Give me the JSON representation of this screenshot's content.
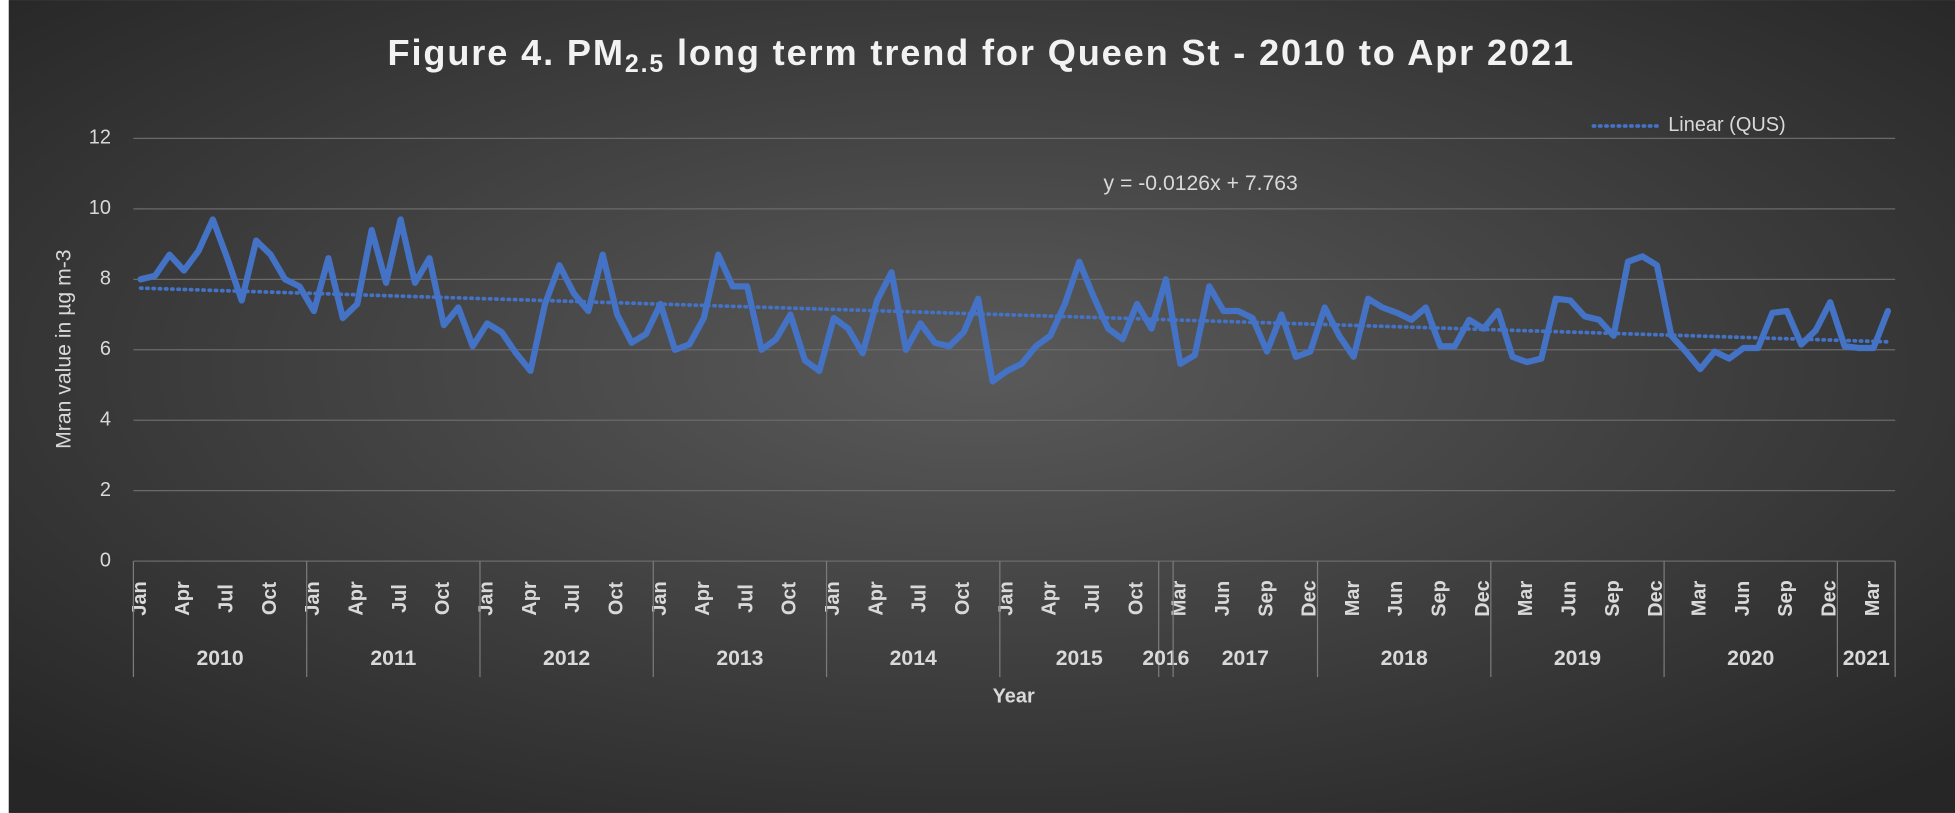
{
  "chart_data": {
    "type": "line",
    "title": "Figure 4. PM",
    "title_subscript": "2.5",
    "title_rest": " long term trend for Queen St - 2010 to Apr 2021",
    "y_label": "Mran value in µg m-3",
    "x_label": "Year",
    "categories": [
      "Jan",
      null,
      null,
      "Apr",
      null,
      null,
      "Jul",
      null,
      null,
      "Oct",
      null,
      null,
      "Jan",
      null,
      null,
      "Apr",
      null,
      null,
      "Jul",
      null,
      null,
      "Oct",
      null,
      null,
      "Jan",
      null,
      null,
      "Apr",
      null,
      null,
      "Jul",
      null,
      null,
      "Oct",
      null,
      null,
      "Jan",
      null,
      null,
      "Apr",
      null,
      null,
      "Jul",
      null,
      null,
      "Oct",
      null,
      null,
      "Jan",
      null,
      null,
      "Apr",
      null,
      null,
      "Jul",
      null,
      null,
      "Oct",
      null,
      null,
      "Jan",
      null,
      null,
      "Apr",
      null,
      null,
      "Jul",
      null,
      null,
      "Oct",
      null,
      null,
      "Mar",
      null,
      null,
      "Jun",
      null,
      null,
      "Sep",
      null,
      null,
      "Dec",
      null,
      null,
      "Mar",
      null,
      null,
      "Jun",
      null,
      null,
      "Sep",
      null,
      null,
      "Dec",
      null,
      null,
      "Mar",
      null,
      null,
      "Jun",
      null,
      null,
      "Sep",
      null,
      null,
      "Dec",
      null,
      null,
      "Mar",
      null,
      null,
      "Jun",
      null,
      null,
      "Sep",
      null,
      null,
      "Dec",
      null,
      null,
      "Mar",
      null
    ],
    "groups": [
      {
        "label": "2010",
        "count": 12
      },
      {
        "label": "2011",
        "count": 12
      },
      {
        "label": "2012",
        "count": 12
      },
      {
        "label": "2013",
        "count": 12
      },
      {
        "label": "2014",
        "count": 12
      },
      {
        "label": "2015",
        "count": 11
      },
      {
        "label": "2016",
        "count": 1
      },
      {
        "label": "2017",
        "count": 10
      },
      {
        "label": "2018",
        "count": 12
      },
      {
        "label": "2019",
        "count": 12
      },
      {
        "label": "2020",
        "count": 12
      },
      {
        "label": "2021",
        "count": 4
      }
    ],
    "series": [
      {
        "name": "QUS",
        "color": "#4472c4",
        "values": [
          8.0,
          8.1,
          8.7,
          8.25,
          8.8,
          9.7,
          8.6,
          7.4,
          9.1,
          8.7,
          8.0,
          7.8,
          7.1,
          8.6,
          6.9,
          7.3,
          9.4,
          7.9,
          9.7,
          7.9,
          8.6,
          6.7,
          7.2,
          6.1,
          6.75,
          6.5,
          5.9,
          5.4,
          7.3,
          8.4,
          7.6,
          7.1,
          8.7,
          7.0,
          6.2,
          6.45,
          7.3,
          6.0,
          6.15,
          6.9,
          8.7,
          7.8,
          7.8,
          6.0,
          6.3,
          7.0,
          5.7,
          5.4,
          6.9,
          6.6,
          5.9,
          7.4,
          8.2,
          6.0,
          6.75,
          6.2,
          6.1,
          6.5,
          7.45,
          5.1,
          5.4,
          5.6,
          6.1,
          6.4,
          7.3,
          8.5,
          7.5,
          6.6,
          6.3,
          7.3,
          6.6,
          8.0,
          5.6,
          5.85,
          7.8,
          7.1,
          7.1,
          6.9,
          5.95,
          7.0,
          5.8,
          5.95,
          7.2,
          6.4,
          5.8,
          7.45,
          7.2,
          7.05,
          6.85,
          7.2,
          6.1,
          6.1,
          6.85,
          6.6,
          7.1,
          5.8,
          5.65,
          5.75,
          7.45,
          7.4,
          6.95,
          6.85,
          6.4,
          8.5,
          8.65,
          8.4,
          6.4,
          5.95,
          5.45,
          5.95,
          5.75,
          6.05,
          6.05,
          7.05,
          7.1,
          6.15,
          6.55,
          7.35,
          6.1,
          6.05,
          6.05,
          7.1
        ]
      }
    ],
    "trendline": {
      "name": "Linear (QUS)",
      "equation": "y = -0.0126x + 7.763",
      "slope": -0.0126,
      "intercept": 7.763,
      "color": "#4472c4"
    },
    "ylim": [
      0,
      12
    ],
    "yticks": [
      0,
      2,
      4,
      6,
      8,
      10,
      12
    ],
    "grid": true,
    "legend": "top-right"
  }
}
